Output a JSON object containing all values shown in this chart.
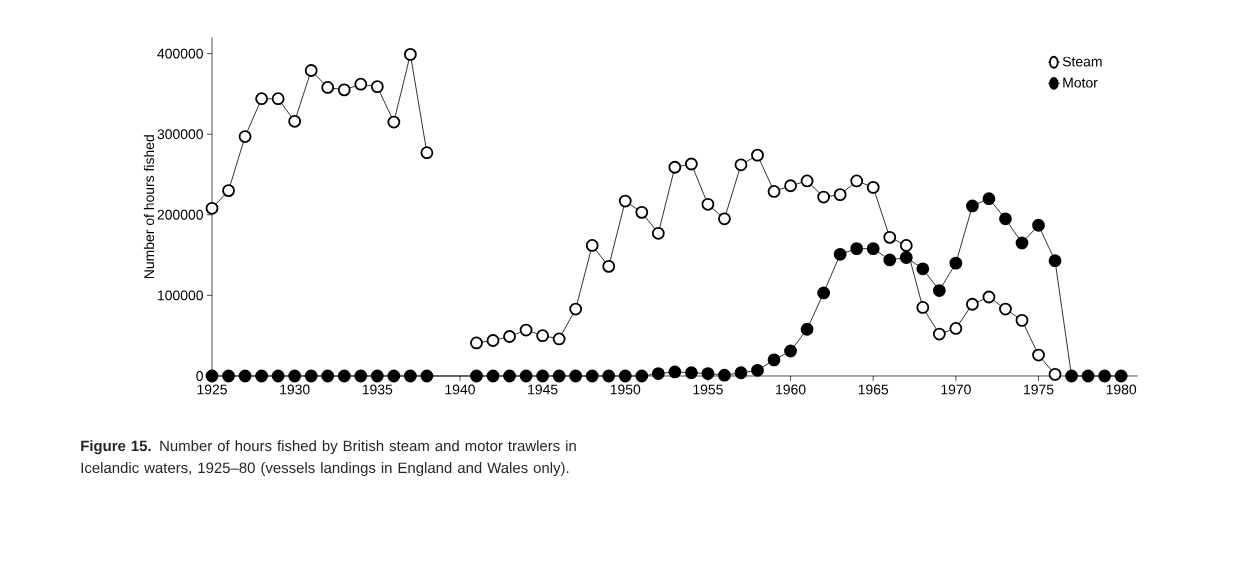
{
  "chart_data": {
    "type": "line",
    "ylabel": "Number of hours fished",
    "annotations": [
      "**Figure 15.** Number of hours fished by British steam and motor trawlers in Icelandic waters, 1925–80 (vessels landings in England and Wales only)."
    ],
    "series": [
      {
        "name": "Steam",
        "color": "#ffffff",
        "x": [
          1925,
          1926,
          1927,
          1928,
          1929,
          1930,
          1931,
          1932,
          1933,
          1934,
          1935,
          1936,
          1937,
          1938,
          1939,
          1940,
          1941,
          1942,
          1943,
          1944,
          1945,
          1946,
          1947,
          1948,
          1949,
          1950,
          1951,
          1952,
          1953,
          1954,
          1955,
          1956,
          1957,
          1958,
          1959,
          1960,
          1961,
          1962,
          1963,
          1964,
          1965,
          1966,
          1967,
          1968,
          1969,
          1970,
          1971,
          1972,
          1973,
          1974,
          1975,
          1976
        ],
        "values": [
          208000,
          230000,
          297000,
          344000,
          344000,
          316000,
          379000,
          358000,
          355000,
          362000,
          359000,
          315000,
          399000,
          277000,
          null,
          null,
          41000,
          44000,
          49000,
          57000,
          50000,
          46000,
          83000,
          162000,
          136000,
          217000,
          203000,
          177000,
          259000,
          263000,
          213000,
          195000,
          262000,
          274000,
          229000,
          236000,
          242000,
          222000,
          225000,
          242000,
          234000,
          172000,
          162000,
          85000,
          52000,
          59000,
          89000,
          98000,
          83000,
          69000,
          26000,
          2000
        ]
      },
      {
        "name": "Motor",
        "color": "#000000",
        "x": [
          1925,
          1926,
          1927,
          1928,
          1929,
          1930,
          1931,
          1932,
          1933,
          1934,
          1935,
          1936,
          1937,
          1938,
          1941,
          1942,
          1943,
          1944,
          1945,
          1946,
          1947,
          1948,
          1949,
          1950,
          1951,
          1952,
          1953,
          1954,
          1955,
          1956,
          1957,
          1958,
          1959,
          1960,
          1961,
          1962,
          1963,
          1964,
          1965,
          1966,
          1967,
          1968,
          1969,
          1970,
          1971,
          1972,
          1973,
          1974,
          1975,
          1976,
          1977,
          1978,
          1979,
          1980
        ],
        "values": [
          0,
          0,
          0,
          0,
          0,
          0,
          0,
          0,
          0,
          0,
          0,
          0,
          0,
          0,
          0,
          0,
          0,
          0,
          0,
          0,
          0,
          0,
          0,
          0,
          0,
          3000,
          5000,
          4000,
          3000,
          1000,
          4000,
          7000,
          20000,
          31000,
          58000,
          103000,
          151000,
          158000,
          158000,
          144000,
          147000,
          133000,
          106000,
          140000,
          211000,
          220000,
          195000,
          165000,
          187000,
          143000,
          0,
          0,
          0,
          0
        ]
      }
    ],
    "xlim": [
      1925,
      1981
    ],
    "ylim": [
      0,
      420000
    ],
    "xticks": [
      1925,
      1930,
      1935,
      1940,
      1945,
      1950,
      1955,
      1960,
      1965,
      1970,
      1975,
      1980
    ],
    "yticks": [
      0,
      100000,
      200000,
      300000,
      400000
    ],
    "grid": false,
    "legend": "top right",
    "marker": "circle",
    "line_style": "solid"
  }
}
